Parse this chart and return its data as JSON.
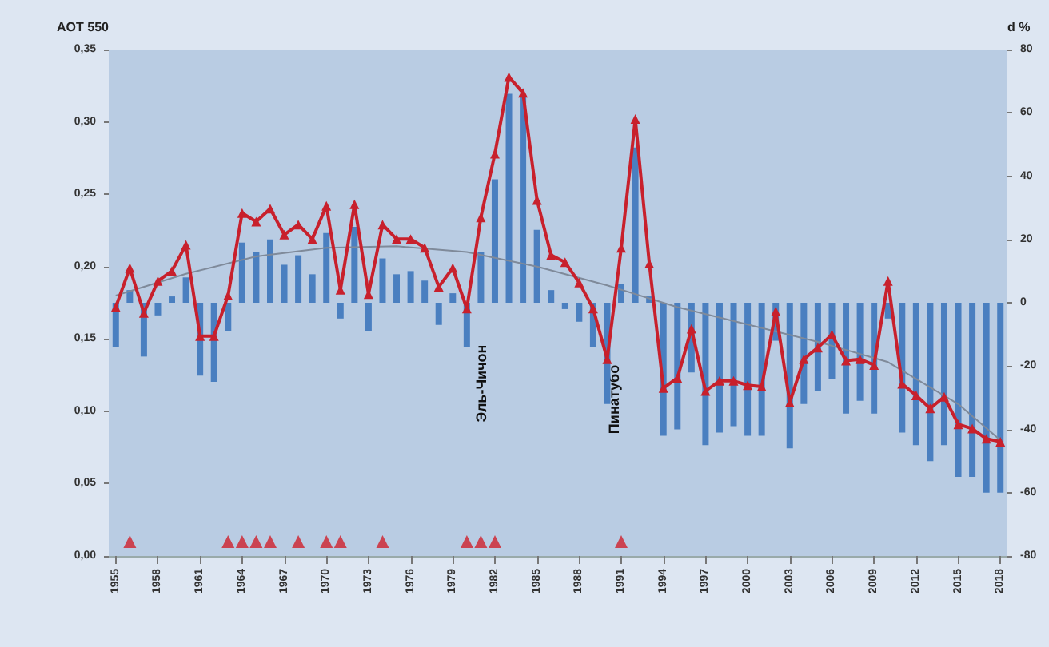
{
  "chart_data": {
    "type": "line",
    "ylabel": "AOT 550",
    "y2label": "d %",
    "xlim": [
      1954.5,
      2018.5
    ],
    "xticks": [
      1955,
      1958,
      1961,
      1964,
      1967,
      1970,
      1973,
      1976,
      1979,
      1982,
      1985,
      1988,
      1991,
      1994,
      1997,
      2000,
      2003,
      2006,
      2009,
      2012,
      2015,
      2018
    ],
    "ylim": [
      0,
      0.35
    ],
    "yticks": [
      {
        "value": 0,
        "label": "0,00"
      },
      {
        "value": 0.05,
        "label": "0,05"
      },
      {
        "value": 0.1,
        "label": "0,10"
      },
      {
        "value": 0.15,
        "label": "0,15"
      },
      {
        "value": 0.2,
        "label": "0,20"
      },
      {
        "value": 0.25,
        "label": "0,25"
      },
      {
        "value": 0.3,
        "label": "0,30"
      },
      {
        "value": 0.35,
        "label": "0,35"
      }
    ],
    "y2lim": [
      -80,
      80
    ],
    "y2ticks": [
      -80,
      -60,
      -40,
      -20,
      0,
      20,
      40,
      60,
      80
    ],
    "grid": false,
    "x": [
      1955,
      1956,
      1957,
      1958,
      1959,
      1960,
      1961,
      1962,
      1963,
      1964,
      1965,
      1966,
      1967,
      1968,
      1969,
      1970,
      1971,
      1972,
      1973,
      1974,
      1975,
      1976,
      1977,
      1978,
      1979,
      1980,
      1981,
      1982,
      1983,
      1984,
      1985,
      1986,
      1987,
      1988,
      1989,
      1990,
      1991,
      1992,
      1993,
      1994,
      1995,
      1996,
      1997,
      1998,
      1999,
      2000,
      2001,
      2002,
      2003,
      2004,
      2005,
      2006,
      2007,
      2008,
      2009,
      2010,
      2011,
      2012,
      2013,
      2014,
      2015,
      2016,
      2017,
      2018
    ],
    "series": [
      {
        "type": "bar",
        "axis": "y2",
        "color": "#4a7fc0",
        "values": [
          -14,
          4,
          -17,
          -4,
          2,
          8,
          -23,
          -25,
          -9,
          19,
          16,
          20,
          12,
          15,
          9,
          22,
          -5,
          24,
          -9,
          14,
          9,
          10,
          7,
          -7,
          3,
          -14,
          16,
          39,
          66,
          65,
          23,
          4,
          -2,
          -6,
          -14,
          -32,
          6,
          49,
          2,
          -42,
          -40,
          -22,
          -45,
          -41,
          -39,
          -42,
          -42,
          -12,
          -46,
          -32,
          -28,
          -24,
          -35,
          -31,
          -35,
          -5,
          -41,
          -45,
          -50,
          -45,
          -55,
          -55,
          -60,
          -60
        ]
      },
      {
        "marker": "none",
        "color": "#7f8a9a",
        "x": [
          1955,
          1960,
          1965,
          1970,
          1975,
          1980,
          1985,
          1990,
          1995,
          2000,
          2005,
          2010,
          2015,
          2018
        ],
        "values": [
          0.18,
          0.195,
          0.207,
          0.213,
          0.214,
          0.21,
          0.2,
          0.187,
          0.172,
          0.16,
          0.148,
          0.134,
          0.105,
          0.08
        ]
      },
      {
        "marker": "triangle",
        "color": "#c8202c",
        "values": [
          0.172,
          0.199,
          0.168,
          0.19,
          0.197,
          0.215,
          0.152,
          0.152,
          0.18,
          0.237,
          0.231,
          0.24,
          0.222,
          0.229,
          0.219,
          0.242,
          0.184,
          0.243,
          0.181,
          0.229,
          0.219,
          0.219,
          0.213,
          0.186,
          0.199,
          0.171,
          0.234,
          0.278,
          0.331,
          0.32,
          0.246,
          0.208,
          0.203,
          0.189,
          0.171,
          0.136,
          0.213,
          0.302,
          0.202,
          0.116,
          0.123,
          0.157,
          0.114,
          0.121,
          0.121,
          0.118,
          0.117,
          0.169,
          0.106,
          0.136,
          0.144,
          0.153,
          0.135,
          0.136,
          0.132,
          0.19,
          0.119,
          0.111,
          0.102,
          0.11,
          0.091,
          0.088,
          0.081,
          0.079
        ]
      },
      {
        "type": "scatter",
        "marker": "triangle",
        "color": "#d0202c",
        "x": [
          1956,
          1963,
          1964,
          1965,
          1966,
          1968,
          1970,
          1971,
          1974,
          1980,
          1981,
          1982,
          1991
        ],
        "values": [
          0.01,
          0.01,
          0.01,
          0.01,
          0.01,
          0.01,
          0.01,
          0.01,
          0.01,
          0.01,
          0.01,
          0.01,
          0.01
        ]
      }
    ],
    "annotations": [
      "Эль-Чичон",
      "Пинатубо"
    ]
  }
}
